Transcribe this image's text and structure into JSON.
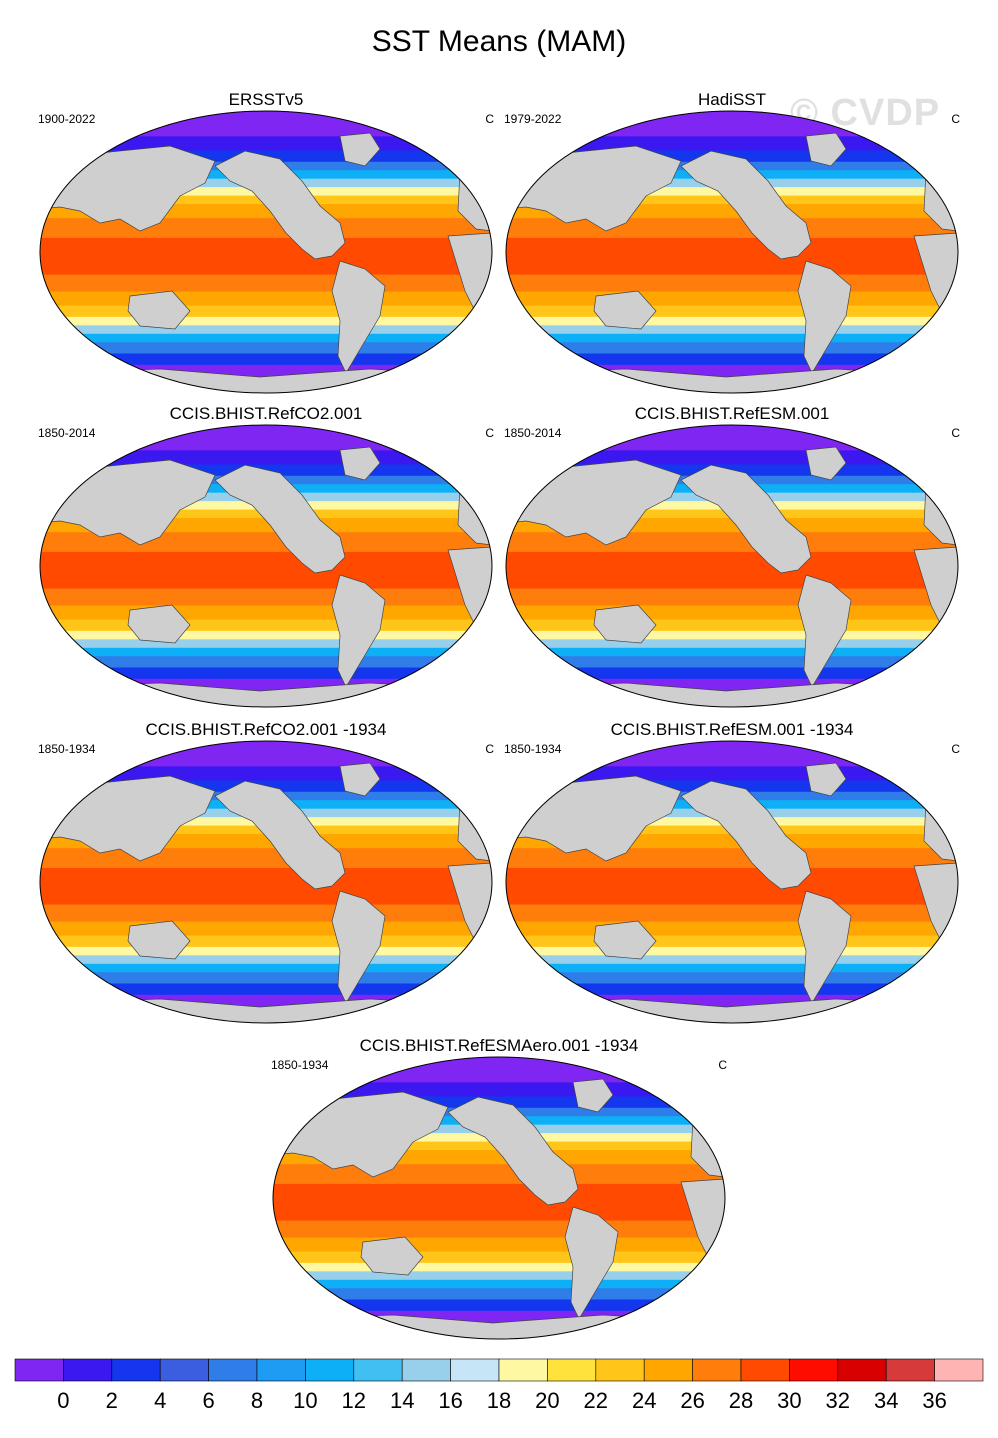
{
  "title": "SST Means (MAM)",
  "watermark": "© CVDP",
  "chart_data": [
    {
      "type": "heatmap",
      "title": "ERSSTv5",
      "period": "1900-2022",
      "units": "C"
    },
    {
      "type": "heatmap",
      "title": "HadiSST",
      "period": "1979-2022",
      "units": "C"
    },
    {
      "type": "heatmap",
      "title": "CCIS.BHIST.RefCO2.001",
      "period": "1850-2014",
      "units": "C"
    },
    {
      "type": "heatmap",
      "title": "CCIS.BHIST.RefESM.001",
      "period": "1850-2014",
      "units": "C"
    },
    {
      "type": "heatmap",
      "title": "CCIS.BHIST.RefCO2.001 -1934",
      "period": "1850-1934",
      "units": "C"
    },
    {
      "type": "heatmap",
      "title": "CCIS.BHIST.RefESM.001 -1934",
      "period": "1850-1934",
      "units": "C"
    },
    {
      "type": "heatmap",
      "title": "CCIS.BHIST.RefESMAero.001 -1934",
      "period": "1850-1934",
      "units": "C"
    }
  ],
  "colorbar": {
    "colors": [
      "#7f26f2",
      "#3a18ef",
      "#1336ee",
      "#3b5de0",
      "#2f7de8",
      "#1e9bf2",
      "#0db0f6",
      "#40c0f2",
      "#98d0ec",
      "#c6e6f8",
      "#fff8a2",
      "#ffe23c",
      "#ffc518",
      "#ffa600",
      "#ff7d0a",
      "#ff4a00",
      "#ff0c00",
      "#d80000",
      "#d63a3a",
      "#ffb4b4"
    ],
    "tick_labels": [
      "0",
      "2",
      "4",
      "6",
      "8",
      "10",
      "12",
      "14",
      "16",
      "18",
      "20",
      "22",
      "24",
      "26",
      "28",
      "30",
      "32",
      "34",
      "36"
    ],
    "land_color": "#cfcfcf"
  }
}
